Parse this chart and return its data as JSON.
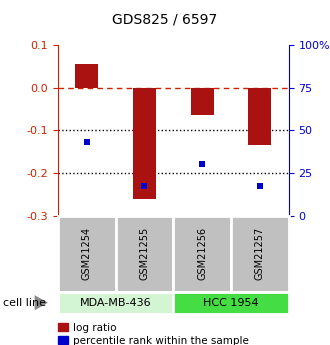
{
  "title": "GDS825 / 6597",
  "samples": [
    "GSM21254",
    "GSM21255",
    "GSM21256",
    "GSM21257"
  ],
  "log_ratios": [
    0.055,
    -0.26,
    -0.065,
    -0.135
  ],
  "percentile_ranks": [
    0.43,
    0.175,
    0.305,
    0.175
  ],
  "ylim_left": [
    -0.3,
    0.1
  ],
  "ylim_right": [
    0,
    100
  ],
  "hline_dashed": 0.0,
  "hlines_dotted": [
    -0.1,
    -0.2
  ],
  "yticks_left": [
    0.1,
    0.0,
    -0.1,
    -0.2,
    -0.3
  ],
  "yticks_right": [
    100,
    75,
    50,
    25,
    0
  ],
  "groups": [
    {
      "label": "MDA-MB-436",
      "samples": [
        0,
        1
      ],
      "color": "#d4f5d4"
    },
    {
      "label": "HCC 1954",
      "samples": [
        2,
        3
      ],
      "color": "#44dd44"
    }
  ],
  "bar_color": "#aa1111",
  "dot_color": "#0000cc",
  "left_axis_color": "#cc2200",
  "right_axis_color": "#0000cc",
  "bg_color": "#ffffff",
  "sample_box_color": "#c0c0c0",
  "legend_labels": [
    "log ratio",
    "percentile rank within the sample"
  ],
  "cell_line_label": "cell line"
}
